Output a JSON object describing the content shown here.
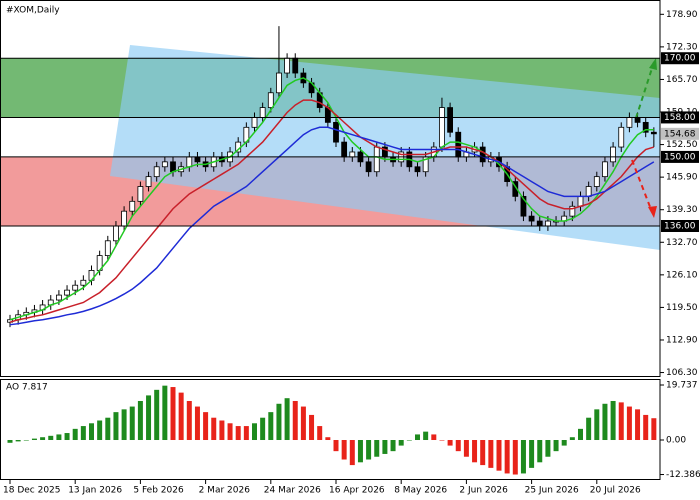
{
  "chart_data": [
    {
      "type": "candlestick",
      "title": "#XOM,Daily",
      "categories": [
        "18 Dec 2025",
        null,
        null,
        null,
        null,
        null,
        null,
        null,
        "13 Jan 2026",
        null,
        null,
        null,
        null,
        null,
        null,
        null,
        "5 Feb 2026",
        null,
        null,
        null,
        null,
        null,
        null,
        null,
        "2 Mar 2026",
        null,
        null,
        null,
        null,
        null,
        null,
        null,
        "24 Mar 2026",
        null,
        null,
        null,
        null,
        null,
        null,
        null,
        "16 Apr 2026",
        null,
        null,
        null,
        null,
        null,
        null,
        null,
        "8 May 2026",
        null,
        null,
        null,
        null,
        null,
        null,
        null,
        "2 Jun 2026",
        null,
        null,
        null,
        null,
        null,
        null,
        null,
        "25 Jun 2026",
        null,
        null,
        null,
        null,
        null,
        null,
        null,
        "20 Jul 2026",
        null,
        null,
        null,
        null,
        null,
        null,
        null
      ],
      "ohlc": [
        [
          116.5,
          118,
          115.5,
          117
        ],
        [
          117,
          119,
          116,
          118
        ],
        [
          118,
          119.5,
          117,
          118.5
        ],
        [
          118.5,
          120,
          117.5,
          119
        ],
        [
          119,
          121,
          118,
          120
        ],
        [
          120,
          122,
          119,
          121
        ],
        [
          121,
          123,
          120,
          122
        ],
        [
          122,
          124,
          121,
          123
        ],
        [
          123,
          125,
          122,
          124
        ],
        [
          124,
          126,
          123,
          125
        ],
        [
          125,
          128,
          124,
          127
        ],
        [
          127,
          131,
          126,
          130
        ],
        [
          130,
          134,
          129,
          133
        ],
        [
          133,
          137,
          132,
          136
        ],
        [
          136,
          140,
          135,
          139
        ],
        [
          139,
          142,
          138,
          141
        ],
        [
          141,
          145,
          140,
          144
        ],
        [
          144,
          147,
          143,
          146
        ],
        [
          146,
          149,
          145,
          148
        ],
        [
          148,
          150,
          147,
          149
        ],
        [
          149,
          150,
          146,
          147
        ],
        [
          147,
          149,
          146,
          148
        ],
        [
          148,
          151,
          147,
          150
        ],
        [
          150,
          151,
          148,
          149
        ],
        [
          149,
          150,
          147,
          148
        ],
        [
          148,
          151,
          147,
          150
        ],
        [
          150,
          151,
          148,
          149
        ],
        [
          149,
          152,
          148,
          151
        ],
        [
          151,
          154,
          150,
          153
        ],
        [
          153,
          157,
          152,
          156
        ],
        [
          156,
          159,
          155,
          158
        ],
        [
          158,
          161,
          157,
          160
        ],
        [
          160,
          164,
          159,
          163
        ],
        [
          163,
          176.5,
          162,
          167
        ],
        [
          167,
          171,
          166,
          170
        ],
        [
          170,
          171,
          166,
          167
        ],
        [
          167,
          168,
          164,
          165
        ],
        [
          165,
          166,
          162,
          163
        ],
        [
          163,
          164,
          159,
          160
        ],
        [
          160,
          161,
          156,
          157
        ],
        [
          157,
          158,
          152,
          153
        ],
        [
          153,
          154,
          149,
          150
        ],
        [
          150,
          152,
          149,
          151
        ],
        [
          151,
          152,
          148,
          149
        ],
        [
          149,
          150,
          146,
          147
        ],
        [
          147,
          153,
          146,
          152
        ],
        [
          152,
          153,
          149,
          150
        ],
        [
          150,
          151,
          148,
          149
        ],
        [
          149,
          152,
          148,
          151
        ],
        [
          151,
          152,
          147,
          148
        ],
        [
          148,
          149,
          146,
          147
        ],
        [
          147,
          151,
          146,
          150
        ],
        [
          150,
          153,
          149,
          152
        ],
        [
          152,
          162,
          151,
          160
        ],
        [
          160,
          161,
          154,
          155
        ],
        [
          155,
          156,
          149,
          150
        ],
        [
          150,
          152,
          149,
          151
        ],
        [
          151,
          153,
          150,
          152
        ],
        [
          152,
          153,
          148,
          149
        ],
        [
          149,
          151,
          148,
          150
        ],
        [
          150,
          151,
          147,
          148
        ],
        [
          148,
          149,
          144,
          145
        ],
        [
          145,
          146,
          141,
          142
        ],
        [
          142,
          143,
          137,
          138
        ],
        [
          138,
          139,
          136,
          137
        ],
        [
          137,
          138,
          135,
          136
        ],
        [
          136,
          138,
          135,
          137
        ],
        [
          137,
          138,
          136,
          137
        ],
        [
          137,
          139,
          136,
          138
        ],
        [
          138,
          141,
          137,
          140
        ],
        [
          140,
          143,
          139,
          142
        ],
        [
          142,
          145,
          141,
          144
        ],
        [
          144,
          147,
          143,
          146
        ],
        [
          146,
          150,
          145,
          149
        ],
        [
          149,
          153,
          148,
          152
        ],
        [
          152,
          157,
          151,
          156
        ],
        [
          156,
          159,
          155,
          158
        ],
        [
          158,
          159,
          156,
          157
        ],
        [
          157,
          158,
          154,
          155
        ],
        [
          155,
          156,
          152,
          154.68
        ]
      ],
      "bull_color": "#ffffff",
      "bear_color": "#000000",
      "lines": [
        {
          "color": "#22c922",
          "values": [
            117,
            117.5,
            118,
            118.5,
            119,
            120,
            120.5,
            121.5,
            122.5,
            123.5,
            125,
            127,
            129,
            132,
            135,
            138,
            140,
            142,
            144,
            146,
            147,
            147.5,
            148,
            148.5,
            148.5,
            149,
            149.5,
            150,
            151.5,
            153,
            155,
            157,
            159.5,
            162,
            164.5,
            165.5,
            166,
            165,
            163,
            161,
            158,
            155,
            153,
            151.5,
            150,
            150,
            149.5,
            149.5,
            149.5,
            149.5,
            149,
            149.5,
            150,
            152,
            153,
            153,
            152.5,
            152,
            151,
            150,
            148.5,
            146.5,
            144,
            141.5,
            139.5,
            138,
            137.5,
            137,
            137,
            137.5,
            138.5,
            140,
            142,
            144.5,
            147,
            150,
            152.5,
            154.5,
            155.5,
            155.5
          ]
        },
        {
          "color": "#c8202a",
          "values": [
            116.5,
            117,
            117.3,
            117.7,
            118,
            118.5,
            119,
            119.5,
            120,
            120.5,
            121.5,
            122.5,
            124,
            125.5,
            127.5,
            129.5,
            131.5,
            133.5,
            135.5,
            137.5,
            139.5,
            141,
            142.5,
            143.5,
            144.5,
            145.5,
            146.5,
            147.5,
            148.5,
            150,
            151.5,
            153,
            155,
            157,
            159,
            160.5,
            161.5,
            161.5,
            161,
            160,
            158.5,
            157,
            155.5,
            154,
            153,
            152,
            151.5,
            151,
            150.5,
            150.5,
            150.5,
            150.5,
            151,
            151.5,
            152,
            152,
            152,
            151.5,
            151,
            150,
            149,
            147.5,
            146,
            144.5,
            143,
            141.5,
            140.5,
            140,
            139.5,
            139.5,
            140,
            140.5,
            141.5,
            143,
            144.5,
            146,
            148,
            150,
            151.5,
            152
          ]
        },
        {
          "color": "#1e2bd6",
          "values": [
            116,
            116.2,
            116.5,
            116.8,
            117,
            117.3,
            117.6,
            118,
            118.3,
            118.7,
            119.2,
            119.8,
            120.5,
            121.3,
            122.2,
            123.2,
            124.5,
            126,
            127.5,
            129.5,
            131.5,
            133.5,
            135.5,
            137,
            138.5,
            140,
            141,
            142,
            143,
            144,
            145.5,
            147,
            148.5,
            150,
            151.5,
            153,
            154.5,
            155.5,
            156,
            156,
            155.5,
            155,
            154.5,
            154,
            153.5,
            153,
            152.5,
            152,
            151.5,
            151.5,
            151.5,
            151.5,
            151.5,
            151.5,
            151.5,
            151.5,
            151,
            150.5,
            150,
            149.5,
            149,
            148,
            147,
            146,
            145,
            144,
            143,
            142.5,
            142,
            142,
            142,
            142,
            142.5,
            143,
            144,
            145,
            146,
            147,
            148,
            149
          ]
        }
      ],
      "levels": [
        {
          "value": 170,
          "label": "170.00"
        },
        {
          "value": 158,
          "label": "158.00"
        },
        {
          "value": 150,
          "label": "150.00"
        },
        {
          "value": 136,
          "label": "136.00"
        }
      ],
      "zones": [
        {
          "from": 0,
          "to": 1,
          "color": "#5aad5a"
        },
        {
          "from": 2,
          "to": 3,
          "color": "#f08a8a"
        }
      ],
      "last_price": {
        "value": 154.68,
        "label": "154.68"
      },
      "ylim": [
        105.6,
        181.8
      ],
      "yticks": [
        {
          "value": 178.9,
          "label": "178.90"
        },
        {
          "value": 172.3,
          "label": "172.30"
        },
        {
          "value": 165.7,
          "label": "165.70"
        },
        {
          "value": 159.1,
          "label": "159.10"
        },
        {
          "value": 152.5,
          "label": "152.50"
        },
        {
          "value": 145.9,
          "label": "145.90"
        },
        {
          "value": 139.3,
          "label": "139.30"
        },
        {
          "value": 132.7,
          "label": "132.70"
        },
        {
          "value": 126.1,
          "label": "126.10"
        },
        {
          "value": 119.5,
          "label": "119.50"
        },
        {
          "value": 112.9,
          "label": "112.90"
        },
        {
          "value": 106.3,
          "label": "106.30"
        }
      ]
    },
    {
      "type": "bar",
      "title": "AO 7.817",
      "values": [
        -1,
        -0.5,
        0,
        0.5,
        1,
        1.5,
        2,
        2.5,
        4,
        5,
        6,
        7,
        8,
        10,
        11,
        12,
        14,
        16,
        18,
        19.5,
        19,
        17,
        14,
        12,
        10,
        8,
        7,
        6,
        5,
        5,
        6,
        8,
        10,
        13,
        15,
        14,
        12,
        9,
        5,
        1,
        -4,
        -7,
        -9,
        -8,
        -7,
        -6,
        -5,
        -4,
        -2,
        0,
        2,
        3,
        2,
        0,
        -2,
        -4,
        -6,
        -8,
        -9,
        -10,
        -11,
        -12,
        -12.386,
        -12,
        -10,
        -8,
        -6,
        -4,
        -2,
        1,
        4,
        8,
        11,
        13,
        14,
        13.5,
        12,
        11,
        9,
        7.817
      ],
      "up_color": "#1e8a1e",
      "down_color": "#e8231a",
      "ylim": [
        -14.35,
        21.53
      ],
      "yticks": [
        {
          "value": 19.737,
          "label": "19.737"
        },
        {
          "value": 0,
          "label": "0.00"
        },
        {
          "value": -12.386,
          "label": "-12.386"
        }
      ]
    }
  ]
}
